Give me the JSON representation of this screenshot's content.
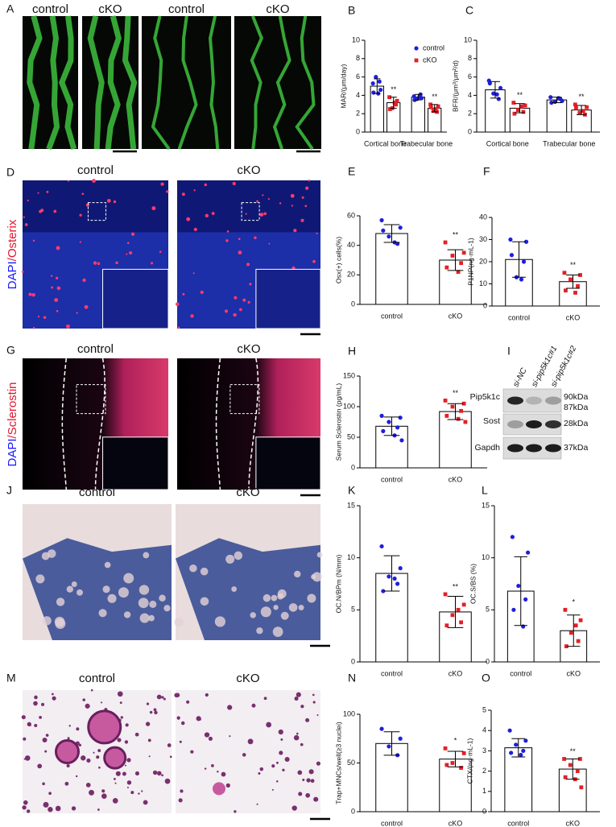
{
  "images": [
    {
      "panel": "A",
      "labels": [
        "control",
        "cKO",
        "control",
        "cKO"
      ]
    },
    {
      "panel": "D",
      "labels": [
        "control",
        "cKO"
      ],
      "stain": [
        "DAPI",
        "/Osterix"
      ]
    },
    {
      "panel": "G",
      "labels": [
        "control",
        "cKO"
      ],
      "stain": [
        "DAPI",
        "/Sclerostin"
      ]
    },
    {
      "panel": "J",
      "labels": [
        "control",
        "cKO"
      ]
    },
    {
      "panel": "M",
      "labels": [
        "control",
        "cKO"
      ]
    }
  ],
  "blot": {
    "panel": "I",
    "lanes": [
      "si-NC",
      "si-pip5k1c#1",
      "si-pip5k1c#2"
    ],
    "rows": [
      {
        "name": "Pip5k1c",
        "sizes": [
          "90kDa",
          "87kDa"
        ]
      },
      {
        "name": "Sost",
        "sizes": [
          "28kDa"
        ]
      },
      {
        "name": "Gapdh",
        "sizes": [
          "37kDa"
        ]
      }
    ]
  },
  "chart_data": [
    {
      "type": "bar",
      "panel": "B",
      "ylabel": "MAR/(μm/day)",
      "categories": [
        "Cortical bone",
        "Trabecular bone"
      ],
      "legend": true,
      "series": [
        {
          "name": "control",
          "color": "#1f1fdc",
          "values": [
            5.0,
            3.8
          ],
          "errors": [
            0.8,
            0.3
          ],
          "points": [
            [
              5.3,
              4.6,
              6.0,
              5.5,
              4.3,
              4.2
            ],
            [
              3.9,
              3.7,
              3.6,
              4.1,
              3.5,
              3.8
            ]
          ]
        },
        {
          "name": "cKO",
          "color": "#e32027",
          "values": [
            3.2,
            2.6
          ],
          "errors": [
            0.6,
            0.4
          ],
          "points": [
            [
              3.8,
              3.4,
              2.6,
              3.0,
              2.5,
              3.2
            ],
            [
              3.0,
              2.8,
              2.3,
              2.2,
              2.7,
              2.5
            ]
          ]
        }
      ],
      "significance": [
        "**",
        "**"
      ],
      "ylim": [
        0,
        10
      ],
      "yticks": [
        0,
        2,
        4,
        6,
        8,
        10
      ]
    },
    {
      "type": "bar",
      "panel": "C",
      "ylabel": "BFR/(μm³/μm²/d)",
      "categories": [
        "Cortical bone",
        "Trabecular bone"
      ],
      "legend": false,
      "series": [
        {
          "color": "#1f1fdc",
          "values": [
            4.6,
            3.5
          ],
          "errors": [
            0.9,
            0.3
          ],
          "points": [
            [
              5.6,
              4.8,
              4.2,
              3.6,
              5.3,
              4.1
            ],
            [
              3.8,
              3.4,
              3.3,
              3.6,
              3.2,
              3.7
            ]
          ]
        },
        {
          "color": "#e32027",
          "values": [
            2.6,
            2.4
          ],
          "errors": [
            0.5,
            0.5
          ],
          "points": [
            [
              3.2,
              2.9,
              2.4,
              2.2,
              2.0,
              2.8
            ],
            [
              3.0,
              2.7,
              2.1,
              1.9,
              2.6,
              2.3
            ]
          ]
        }
      ],
      "significance": [
        "**",
        "**"
      ],
      "ylim": [
        0,
        10
      ],
      "yticks": [
        0,
        2,
        4,
        6,
        8,
        10
      ]
    },
    {
      "type": "bar",
      "panel": "E",
      "ylabel": "Osx(+) cells(%)",
      "categories": [
        "control",
        "cKO"
      ],
      "colors": [
        "#1f1fdc",
        "#e32027"
      ],
      "values": [
        48,
        30
      ],
      "errors": [
        6,
        7
      ],
      "points": [
        [
          57,
          52,
          46,
          41,
          50,
          42
        ],
        [
          42,
          35,
          33,
          28,
          25,
          22
        ]
      ],
      "significance": [
        null,
        "**"
      ],
      "ylim": [
        0,
        60
      ],
      "yticks": [
        0,
        20,
        40,
        60
      ]
    },
    {
      "type": "bar",
      "panel": "F",
      "ylabel": "P1NP(ng·mL-1)",
      "categories": [
        "control",
        "cKO"
      ],
      "colors": [
        "#1f1fdc",
        "#e32027"
      ],
      "values": [
        21,
        11
      ],
      "errors": [
        8,
        3
      ],
      "points": [
        [
          30,
          29,
          13,
          20,
          23,
          12
        ],
        [
          15,
          14,
          12,
          9,
          7,
          6
        ]
      ],
      "significance": [
        null,
        "**"
      ],
      "ylim": [
        0,
        40
      ],
      "yticks": [
        0,
        10,
        20,
        30,
        40
      ]
    },
    {
      "type": "bar",
      "panel": "H",
      "ylabel": "Serum Sclerostin (pg/mL)",
      "categories": [
        "control",
        "cKO"
      ],
      "colors": [
        "#1f1fdc",
        "#e32027"
      ],
      "values": [
        68,
        92
      ],
      "errors": [
        15,
        13
      ],
      "points": [
        [
          85,
          82,
          75,
          66,
          60,
          53,
          45
        ],
        [
          110,
          105,
          100,
          93,
          85,
          80,
          75
        ]
      ],
      "significance": [
        null,
        "**"
      ],
      "ylim": [
        0,
        150
      ],
      "yticks": [
        0,
        50,
        100,
        150
      ]
    },
    {
      "type": "bar",
      "panel": "K",
      "ylabel": "OC.N/BPm (N/mm)",
      "categories": [
        "control",
        "cKO"
      ],
      "colors": [
        "#1f1fdc",
        "#e32027"
      ],
      "values": [
        8.5,
        4.8
      ],
      "errors": [
        1.7,
        1.5
      ],
      "points": [
        [
          11.1,
          9.0,
          8.2,
          7.5,
          6.8,
          8.0
        ],
        [
          6.5,
          5.5,
          4.5,
          3.8,
          3.5,
          5.0
        ]
      ],
      "significance": [
        null,
        "**"
      ],
      "ylim": [
        0,
        15
      ],
      "yticks": [
        0,
        5,
        10,
        15
      ]
    },
    {
      "type": "bar",
      "panel": "L",
      "ylabel": "OC.S/BS (%)",
      "categories": [
        "control",
        "cKO"
      ],
      "colors": [
        "#1f1fdc",
        "#e32027"
      ],
      "values": [
        6.8,
        3.0
      ],
      "errors": [
        3.3,
        1.5
      ],
      "points": [
        [
          12,
          10.5,
          7.3,
          6,
          5,
          3.4
        ],
        [
          5,
          4,
          2.8,
          2,
          1.5,
          3.5
        ]
      ],
      "significance": [
        null,
        "*"
      ],
      "ylim": [
        0,
        15
      ],
      "yticks": [
        0,
        5,
        10,
        15
      ]
    },
    {
      "type": "bar",
      "panel": "N",
      "ylabel": "Trap+MNCs/well(≥3 nuclei)",
      "categories": [
        "control",
        "cKO"
      ],
      "colors": [
        "#1f1fdc",
        "#e32027"
      ],
      "values": [
        70,
        54
      ],
      "errors": [
        12,
        8
      ],
      "points": [
        [
          85,
          75,
          67,
          58
        ],
        [
          65,
          60,
          50,
          45,
          48
        ]
      ],
      "significance": [
        null,
        "*"
      ],
      "ylim": [
        0,
        100
      ],
      "yticks": [
        0,
        50,
        100
      ]
    },
    {
      "type": "bar",
      "panel": "O",
      "ylabel": "CTX/(ng·mL-1)",
      "categories": [
        "control",
        "cKO"
      ],
      "colors": [
        "#1f1fdc",
        "#e32027"
      ],
      "values": [
        3.15,
        2.1
      ],
      "errors": [
        0.45,
        0.5
      ],
      "points": [
        [
          4.0,
          3.5,
          3.3,
          3.0,
          2.9,
          2.8
        ],
        [
          2.6,
          2.6,
          2.3,
          2.0,
          1.7,
          1.6,
          1.2
        ]
      ],
      "significance": [
        null,
        "**"
      ],
      "ylim": [
        0,
        5
      ],
      "yticks": [
        0,
        1,
        2,
        3,
        4,
        5
      ]
    }
  ]
}
